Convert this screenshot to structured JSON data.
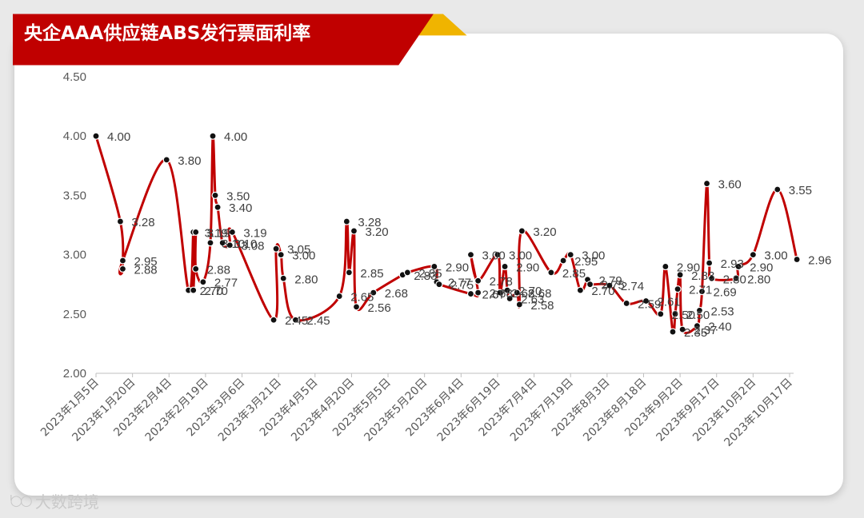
{
  "title": "央企AAA供应链ABS发行票面利率",
  "watermark": "大数跨境",
  "colors": {
    "line": "#c00000",
    "marker": "#111111",
    "banner": "#c00000",
    "banner_accent": "#f0b400"
  },
  "chart_data": {
    "type": "line",
    "title": "央企AAA供应链ABS发行票面利率",
    "xlabel": "",
    "ylabel": "",
    "ylim": [
      2.0,
      4.5
    ],
    "yticks": [
      "2.00",
      "2.50",
      "3.00",
      "3.50",
      "4.00",
      "4.50"
    ],
    "xlim": [
      "2023-01-05",
      "2023-10-17"
    ],
    "xticks": [
      "2023年1月5日",
      "2023年1月20日",
      "2023年2月4日",
      "2023年2月19日",
      "2023年3月6日",
      "2023年3月21日",
      "2023年4月5日",
      "2023年4月20日",
      "2023年5月5日",
      "2023年5月20日",
      "2023年6月4日",
      "2023年6月19日",
      "2023年7月4日",
      "2023年7月19日",
      "2023年8月3日",
      "2023年8月18日",
      "2023年9月2日",
      "2023年9月17日",
      "2023年10月2日",
      "2023年10月17日"
    ],
    "grid": false,
    "legend": "none",
    "series": [
      {
        "points": [
          {
            "x": "2023-01-05",
            "y": 4.0,
            "label": "4.00"
          },
          {
            "x": "2023-01-15",
            "y": 3.28,
            "label": "3.28"
          },
          {
            "x": "2023-01-16",
            "y": 2.88,
            "label": "2.88"
          },
          {
            "x": "2023-01-16",
            "y": 2.95,
            "label": "2.95"
          },
          {
            "x": "2023-02-03",
            "y": 3.8,
            "label": "3.80"
          },
          {
            "x": "2023-02-12",
            "y": 2.7,
            "label": "2.70"
          },
          {
            "x": "2023-02-14",
            "y": 3.19,
            "label": "3.19"
          },
          {
            "x": "2023-02-14",
            "y": 2.7,
            "label": "2.70"
          },
          {
            "x": "2023-02-15",
            "y": 3.19,
            "label": "3.19"
          },
          {
            "x": "2023-02-15",
            "y": 2.88,
            "label": "2.88"
          },
          {
            "x": "2023-02-18",
            "y": 2.77,
            "label": "2.77"
          },
          {
            "x": "2023-02-21",
            "y": 3.1,
            "label": "3.10"
          },
          {
            "x": "2023-02-22",
            "y": 4.0,
            "label": "4.00"
          },
          {
            "x": "2023-02-23",
            "y": 3.5,
            "label": "3.50"
          },
          {
            "x": "2023-02-24",
            "y": 3.4,
            "label": "3.40"
          },
          {
            "x": "2023-02-26",
            "y": 3.1,
            "label": "3.10"
          },
          {
            "x": "2023-03-01",
            "y": 3.08,
            "label": "3.08"
          },
          {
            "x": "2023-03-02",
            "y": 3.19,
            "label": "3.19"
          },
          {
            "x": "2023-03-19",
            "y": 2.45,
            "label": "2.45"
          },
          {
            "x": "2023-03-20",
            "y": 3.05,
            "label": "3.05"
          },
          {
            "x": "2023-03-22",
            "y": 3.0,
            "label": "3.00"
          },
          {
            "x": "2023-03-23",
            "y": 2.8,
            "label": "2.80"
          },
          {
            "x": "2023-03-28",
            "y": 2.45,
            "label": "2.45"
          },
          {
            "x": "2023-04-15",
            "y": 2.65,
            "label": "2.65"
          },
          {
            "x": "2023-04-18",
            "y": 3.28,
            "label": "3.28"
          },
          {
            "x": "2023-04-19",
            "y": 2.85,
            "label": "2.85"
          },
          {
            "x": "2023-04-21",
            "y": 3.2,
            "label": "3.20"
          },
          {
            "x": "2023-04-22",
            "y": 2.56,
            "label": "2.56"
          },
          {
            "x": "2023-04-29",
            "y": 2.68,
            "label": "2.68"
          },
          {
            "x": "2023-05-11",
            "y": 2.83,
            "label": "2.83"
          },
          {
            "x": "2023-05-13",
            "y": 2.85,
            "label": "2.85"
          },
          {
            "x": "2023-05-24",
            "y": 2.9,
            "label": "2.90"
          },
          {
            "x": "2023-05-25",
            "y": 2.77,
            "label": "2.77"
          },
          {
            "x": "2023-05-26",
            "y": 2.75,
            "label": "2.75"
          },
          {
            "x": "2023-06-08",
            "y": 2.67,
            "label": "2.67"
          },
          {
            "x": "2023-06-11",
            "y": 2.68,
            "label": "2.68"
          },
          {
            "x": "2023-06-08",
            "y": 3.0,
            "label": "3.00"
          },
          {
            "x": "2023-06-11",
            "y": 2.78,
            "label": "2.78"
          },
          {
            "x": "2023-06-19",
            "y": 3.0,
            "label": "3.00"
          },
          {
            "x": "2023-06-20",
            "y": 2.68,
            "label": "2.68"
          },
          {
            "x": "2023-06-22",
            "y": 2.9,
            "label": "2.90"
          },
          {
            "x": "2023-06-23",
            "y": 2.7,
            "label": "2.70"
          },
          {
            "x": "2023-06-24",
            "y": 2.63,
            "label": "2.63"
          },
          {
            "x": "2023-06-27",
            "y": 2.68,
            "label": "2.68"
          },
          {
            "x": "2023-06-28",
            "y": 2.58,
            "label": "2.58"
          },
          {
            "x": "2023-06-29",
            "y": 3.2,
            "label": "3.20"
          },
          {
            "x": "2023-07-11",
            "y": 2.85,
            "label": "2.85"
          },
          {
            "x": "2023-07-16",
            "y": 2.95,
            "label": "2.95"
          },
          {
            "x": "2023-07-19",
            "y": 3.0,
            "label": "3.00"
          },
          {
            "x": "2023-07-23",
            "y": 2.7,
            "label": "2.70"
          },
          {
            "x": "2023-07-26",
            "y": 2.79,
            "label": "2.79"
          },
          {
            "x": "2023-07-27",
            "y": 2.75,
            "label": "2.75"
          },
          {
            "x": "2023-08-04",
            "y": 2.74,
            "label": "2.74"
          },
          {
            "x": "2023-08-11",
            "y": 2.59,
            "label": "2.59"
          },
          {
            "x": "2023-08-19",
            "y": 2.61,
            "label": "2.61"
          },
          {
            "x": "2023-08-25",
            "y": 2.5,
            "label": "2.50"
          },
          {
            "x": "2023-08-27",
            "y": 2.9,
            "label": "2.90"
          },
          {
            "x": "2023-08-30",
            "y": 2.35,
            "label": "2.35"
          },
          {
            "x": "2023-08-31",
            "y": 2.5,
            "label": "2.50"
          },
          {
            "x": "2023-09-01",
            "y": 2.71,
            "label": "2.71"
          },
          {
            "x": "2023-09-02",
            "y": 2.83,
            "label": "2.83"
          },
          {
            "x": "2023-09-03",
            "y": 2.37,
            "label": "2.37"
          },
          {
            "x": "2023-09-09",
            "y": 2.4,
            "label": "2.40"
          },
          {
            "x": "2023-09-10",
            "y": 2.53,
            "label": "2.53"
          },
          {
            "x": "2023-09-11",
            "y": 2.69,
            "label": "2.69"
          },
          {
            "x": "2023-09-13",
            "y": 3.6,
            "label": "3.60"
          },
          {
            "x": "2023-09-14",
            "y": 2.93,
            "label": "2.93"
          },
          {
            "x": "2023-09-15",
            "y": 2.8,
            "label": "2.80"
          },
          {
            "x": "2023-09-25",
            "y": 2.8,
            "label": "2.80"
          },
          {
            "x": "2023-09-26",
            "y": 2.9,
            "label": "2.90"
          },
          {
            "x": "2023-10-02",
            "y": 3.0,
            "label": "3.00"
          },
          {
            "x": "2023-10-12",
            "y": 3.55,
            "label": "3.55"
          },
          {
            "x": "2023-10-20",
            "y": 2.96,
            "label": "2.96"
          }
        ]
      }
    ]
  }
}
